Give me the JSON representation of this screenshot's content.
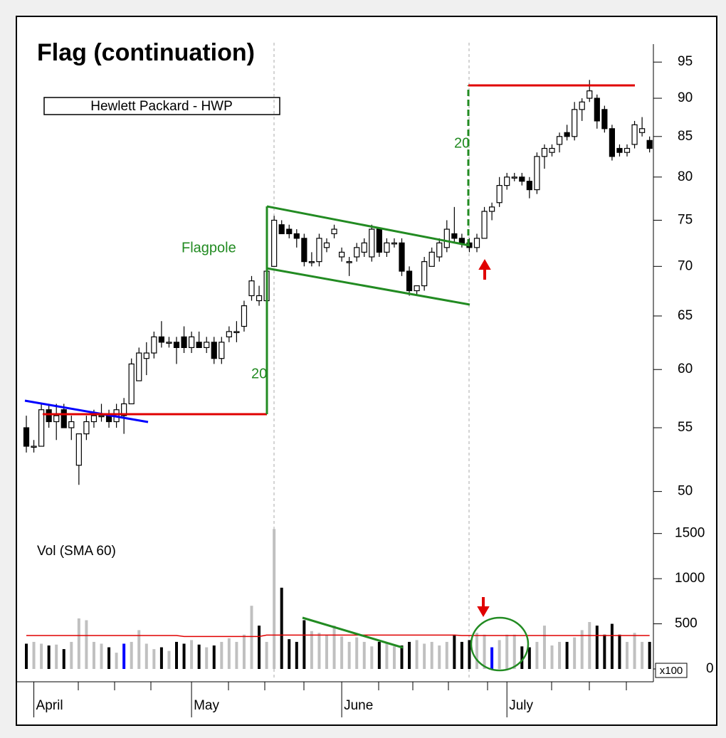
{
  "chart_data": {
    "type": "candlestick",
    "title": "Flag (continuation)",
    "subtitle": "Hewlett Packard - HWP",
    "annotations": {
      "flagpole": "Flagpole",
      "pole_height": "20",
      "target_height": "20"
    },
    "volume_label": "Vol (SMA 60)",
    "volume_unit": "x100",
    "log_scale": true,
    "categories": [
      null,
      "April",
      null,
      null,
      null,
      null,
      null,
      null,
      null,
      null,
      null,
      null,
      null,
      null,
      null,
      null,
      null,
      null,
      null,
      null,
      null,
      null,
      "May",
      null,
      null,
      null,
      null,
      null,
      null,
      null,
      null,
      null,
      null,
      null,
      null,
      null,
      null,
      null,
      null,
      null,
      null,
      null,
      "June",
      null,
      null,
      null,
      null,
      null,
      null,
      null,
      null,
      null,
      null,
      null,
      null,
      null,
      null,
      null,
      null,
      null,
      null,
      null,
      null,
      null,
      "July",
      null,
      null,
      null,
      null,
      null,
      null,
      null,
      null,
      null,
      null,
      null,
      null,
      null,
      null,
      null,
      null,
      null,
      null,
      null
    ],
    "open": [
      55,
      53.5,
      53.5,
      56.5,
      55.5,
      56.5,
      55,
      52,
      54.5,
      55.5,
      56,
      56,
      55.5,
      56,
      57,
      59,
      61,
      61.5,
      63,
      62.5,
      62.5,
      63,
      62,
      62.5,
      62,
      62.5,
      61,
      63,
      63.5,
      64,
      67,
      66.5,
      66.5,
      70,
      74.5,
      74,
      73.5,
      73,
      70.5,
      70.5,
      72,
      73.5,
      71,
      70.5,
      71,
      71.5,
      71,
      74,
      71.5,
      72.5,
      72.5,
      69.5,
      67.5,
      68,
      70,
      71,
      72,
      73.5,
      73,
      72.5,
      72,
      73,
      76,
      77,
      79,
      80,
      80,
      79.5,
      78.5,
      82.5,
      83,
      84,
      85.5,
      85,
      88.5,
      90,
      90,
      88.5,
      86,
      83.5,
      83,
      84,
      85.5,
      84.5
    ],
    "high": [
      56,
      54,
      57,
      57,
      57,
      57,
      56,
      54.5,
      56,
      56.5,
      57,
      56.5,
      57,
      57.5,
      61,
      62,
      62.5,
      63.5,
      64.5,
      63,
      63,
      64,
      63.5,
      63.5,
      63,
      63,
      63,
      64,
      64.5,
      66.5,
      69,
      68,
      70,
      75.5,
      75,
      74.5,
      74,
      73.5,
      71.5,
      73.5,
      73,
      74.5,
      72,
      71,
      72.5,
      73,
      74.5,
      74,
      73,
      73,
      73,
      70,
      68,
      71,
      72,
      73,
      75,
      76.5,
      73.5,
      73,
      73.5,
      76.5,
      77,
      80,
      80.5,
      80.5,
      80.5,
      80,
      83,
      84,
      84,
      85.5,
      86.5,
      89.5,
      90,
      92.5,
      90.5,
      89,
      86.5,
      84,
      84,
      87,
      87.5,
      85
    ],
    "low": [
      53,
      53,
      53.5,
      55,
      54,
      55,
      54,
      50.5,
      54,
      55,
      55.5,
      55,
      55,
      54.5,
      57,
      59,
      59.5,
      61,
      62,
      62,
      60.5,
      61.5,
      61.5,
      62,
      61.5,
      60.5,
      60.5,
      62.5,
      62.5,
      63.5,
      66.5,
      66,
      66,
      70,
      73.5,
      73,
      72,
      70,
      70,
      70,
      71.5,
      73,
      70.5,
      69,
      70.5,
      71,
      70.5,
      71,
      71,
      72,
      69,
      67,
      67,
      67.5,
      70,
      70.5,
      71.5,
      72.5,
      72,
      71.5,
      71.5,
      73,
      75,
      76.5,
      78.5,
      79.5,
      79,
      77.5,
      78,
      81,
      82.5,
      83,
      84.5,
      84.5,
      87,
      89.5,
      86,
      85.5,
      82,
      82.5,
      82.5,
      83.5,
      85,
      83
    ],
    "close": [
      53.5,
      53.5,
      56.5,
      55.5,
      56,
      55,
      55.5,
      54.5,
      55.5,
      56,
      56,
      55.5,
      56.5,
      57,
      60.5,
      61.5,
      61.5,
      63,
      62.5,
      62.5,
      62,
      62,
      63,
      62,
      62.5,
      61,
      62.5,
      63.5,
      63.5,
      66,
      68.5,
      67,
      69.5,
      75,
      73.5,
      73.5,
      73,
      70.5,
      70.5,
      73,
      72.5,
      74,
      71.5,
      70.5,
      72,
      72.5,
      74,
      71.5,
      72.5,
      72.5,
      69.5,
      67.5,
      68,
      70.5,
      71.5,
      72.5,
      74,
      73,
      72.5,
      72,
      73,
      76,
      76.5,
      79,
      80,
      80,
      79.5,
      78.5,
      82.5,
      83.5,
      83.5,
      85,
      85,
      88.5,
      89.5,
      91,
      87,
      86,
      82.5,
      83,
      83.5,
      86.5,
      86,
      83.5
    ],
    "ylim": [
      48,
      98
    ],
    "yticks": [
      50,
      55,
      60,
      65,
      70,
      75,
      80,
      85,
      90,
      95
    ],
    "volume": [
      280,
      300,
      280,
      260,
      270,
      220,
      300,
      560,
      540,
      300,
      280,
      240,
      180,
      280,
      300,
      430,
      280,
      220,
      240,
      200,
      300,
      280,
      320,
      270,
      240,
      260,
      300,
      340,
      300,
      380,
      700,
      480,
      300,
      1550,
      900,
      330,
      300,
      540,
      420,
      400,
      380,
      480,
      360,
      300,
      350,
      300,
      250,
      300,
      280,
      250,
      260,
      300,
      320,
      280,
      300,
      260,
      300,
      380,
      300,
      320,
      400,
      380,
      240,
      320,
      380,
      380,
      250,
      240,
      300,
      480,
      260,
      300,
      300,
      350,
      430,
      520,
      480,
      380,
      500,
      380,
      300,
      400,
      300,
      300
    ],
    "volume_colors": [
      "#000000",
      "#c0c0c0",
      "#c0c0c0",
      "#000000",
      "#c0c0c0",
      "#000000",
      "#c0c0c0",
      "#c0c0c0",
      "#c0c0c0",
      "#c0c0c0",
      "#c0c0c0",
      "#000000",
      "#c0c0c0",
      "#0000ff",
      "#c0c0c0",
      "#c0c0c0",
      "#c0c0c0",
      "#c0c0c0",
      "#000000",
      "#c0c0c0",
      "#000000",
      "#000000",
      "#c0c0c0",
      "#000000",
      "#c0c0c0",
      "#000000",
      "#c0c0c0",
      "#c0c0c0",
      "#c0c0c0",
      "#c0c0c0",
      "#c0c0c0",
      "#000000",
      "#c0c0c0",
      "#c0c0c0",
      "#000000",
      "#000000",
      "#000000",
      "#000000",
      "#c0c0c0",
      "#c0c0c0",
      "#c0c0c0",
      "#c0c0c0",
      "#c0c0c0",
      "#c0c0c0",
      "#c0c0c0",
      "#c0c0c0",
      "#c0c0c0",
      "#000000",
      "#c0c0c0",
      "#c0c0c0",
      "#000000",
      "#000000",
      "#c0c0c0",
      "#c0c0c0",
      "#c0c0c0",
      "#c0c0c0",
      "#c0c0c0",
      "#000000",
      "#000000",
      "#000000",
      "#c0c0c0",
      "#c0c0c0",
      "#0000ff",
      "#c0c0c0",
      "#c0c0c0",
      "#c0c0c0",
      "#000000",
      "#000000",
      "#c0c0c0",
      "#c0c0c0",
      "#c0c0c0",
      "#c0c0c0",
      "#000000",
      "#c0c0c0",
      "#c0c0c0",
      "#c0c0c0",
      "#000000",
      "#000000",
      "#000000",
      "#000000",
      "#c0c0c0",
      "#c0c0c0",
      "#c0c0c0",
      "#000000"
    ],
    "volume_sma": [
      370,
      370,
      370,
      370,
      370,
      370,
      370,
      370,
      370,
      370,
      370,
      370,
      370,
      370,
      370,
      370,
      370,
      370,
      370,
      370,
      370,
      360,
      360,
      360,
      360,
      360,
      360,
      360,
      360,
      360,
      360,
      360,
      375,
      375,
      375,
      375,
      375,
      375,
      375,
      375,
      375,
      375,
      375,
      375,
      375,
      375,
      375,
      375,
      375,
      375,
      375,
      375,
      375,
      375,
      375,
      375,
      375,
      375,
      370,
      370,
      370,
      370,
      370,
      370,
      370,
      370,
      370,
      370,
      370,
      370,
      370,
      370,
      370,
      370,
      370,
      370,
      370,
      370,
      370,
      370,
      370,
      370,
      370,
      370
    ],
    "sma_color": "#e00000",
    "vlim": [
      0,
      1600
    ],
    "vticks": [
      0,
      500,
      1000,
      1500
    ]
  }
}
